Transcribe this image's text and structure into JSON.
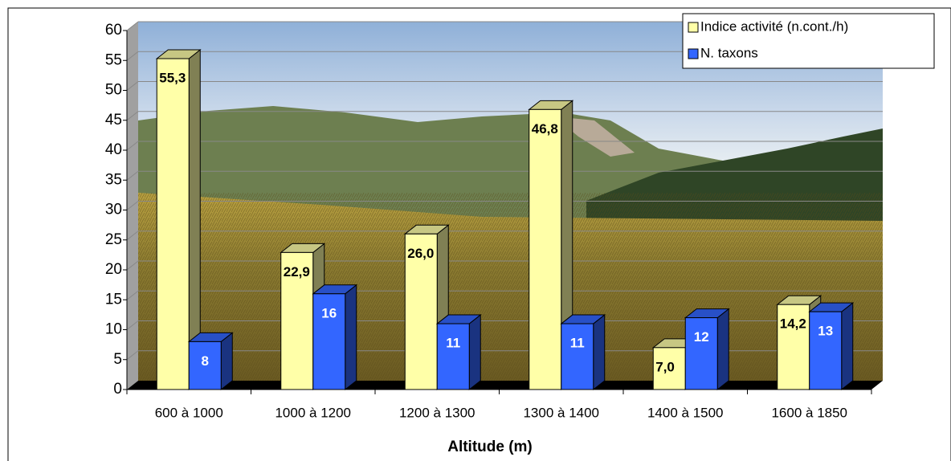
{
  "chart_data": {
    "type": "bar3d",
    "x_label": "Altitude (m)",
    "categories": [
      "600 à 1000",
      "1000 à 1200",
      "1200 à 1300",
      "1300 à 1400",
      "1400 à 1500",
      "1600 à 1850"
    ],
    "series": [
      {
        "name": "Indice activité (n.cont./h)",
        "color": "#ffffa8",
        "values": [
          55.3,
          22.9,
          26.0,
          46.8,
          7.0,
          14.2
        ],
        "value_labels": [
          "55,3",
          "22,9",
          "26,0",
          "46,8",
          "7,0",
          "14,2"
        ]
      },
      {
        "name": "N. taxons",
        "color": "#3366ff",
        "values": [
          8,
          16,
          11,
          11,
          12,
          13
        ]
      }
    ],
    "ylim": [
      0,
      60
    ],
    "yticks": [
      0,
      5,
      10,
      15,
      20,
      25,
      30,
      35,
      40,
      45,
      50,
      55,
      60
    ],
    "grid": true
  }
}
